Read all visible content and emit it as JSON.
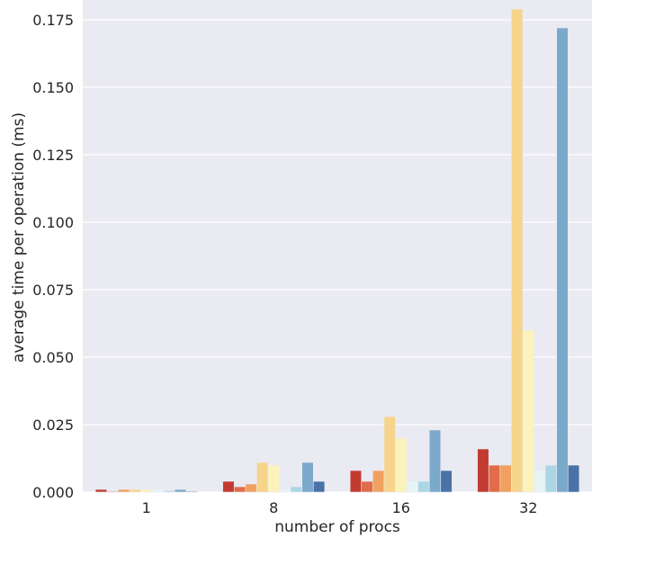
{
  "chart_data": {
    "type": "bar",
    "title": "",
    "xlabel": "number of procs",
    "ylabel": "average time per operation (ms)",
    "categories": [
      "1",
      "8",
      "16",
      "32"
    ],
    "ylim": [
      0,
      0.182
    ],
    "yticks": [
      "0.000",
      "0.025",
      "0.050",
      "0.075",
      "0.100",
      "0.125",
      "0.150",
      "0.175"
    ],
    "grid": true,
    "legend": "none",
    "series": [
      {
        "color": "#c23b30",
        "values": [
          0.001,
          0.004,
          0.008,
          0.016
        ]
      },
      {
        "color": "#e06c4a",
        "values": [
          0.0003,
          0.002,
          0.004,
          0.01
        ]
      },
      {
        "color": "#f0a15f",
        "values": [
          0.001,
          0.003,
          0.008,
          0.01
        ]
      },
      {
        "color": "#f7d48c",
        "values": [
          0.001,
          0.011,
          0.028,
          0.179
        ]
      },
      {
        "color": "#fbf3bb",
        "values": [
          0.001,
          0.01,
          0.02,
          0.06
        ]
      },
      {
        "color": "#e6f5f4",
        "values": [
          0.001,
          0.001,
          0.004,
          0.008
        ]
      },
      {
        "color": "#abd6e3",
        "values": [
          0.0005,
          0.002,
          0.004,
          0.01
        ]
      },
      {
        "color": "#7ba9cb",
        "values": [
          0.001,
          0.011,
          0.023,
          0.172
        ]
      },
      {
        "color": "#4a72a6",
        "values": [
          0.0003,
          0.004,
          0.008,
          0.01
        ]
      }
    ]
  }
}
